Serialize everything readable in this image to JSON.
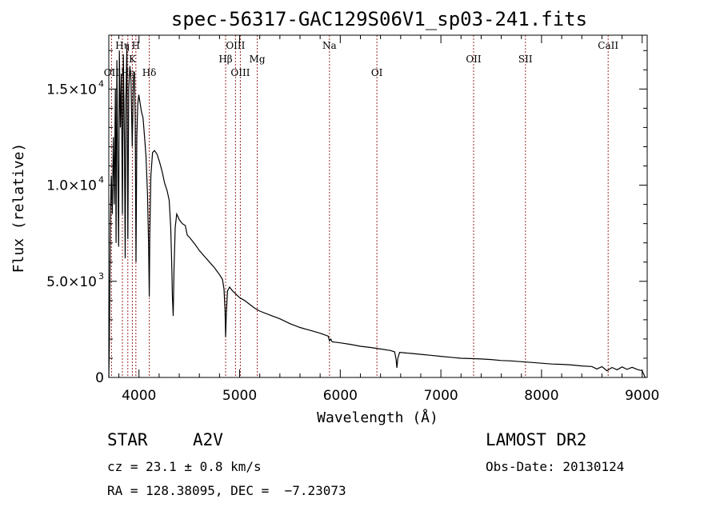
{
  "chart_data": {
    "type": "line",
    "title": "spec-56317-GAC129S06V1_sp03-241.fits",
    "xlabel": "Wavelength (Å)",
    "ylabel": "Flux (relative)",
    "xlim": [
      3700,
      9050
    ],
    "ylim": [
      0,
      17800
    ],
    "x_ticks": [
      {
        "value": 4000,
        "label": "4000"
      },
      {
        "value": 5000,
        "label": "5000"
      },
      {
        "value": 6000,
        "label": "6000"
      },
      {
        "value": 7000,
        "label": "7000"
      },
      {
        "value": 8000,
        "label": "8000"
      },
      {
        "value": 9000,
        "label": "9000"
      }
    ],
    "y_ticks": [
      {
        "value": 0,
        "label": "0"
      },
      {
        "value": 5000,
        "label": "5.0×10",
        "exp": "3"
      },
      {
        "value": 10000,
        "label": "1.0×10",
        "exp": "4"
      },
      {
        "value": 15000,
        "label": "1.5×10",
        "exp": "4"
      }
    ],
    "grid": false,
    "series": [
      {
        "values_xy": [
          [
            3700,
            0
          ],
          [
            3705,
            1500
          ],
          [
            3710,
            4500
          ],
          [
            3715,
            8000
          ],
          [
            3725,
            10500
          ],
          [
            3735,
            8500
          ],
          [
            3745,
            12500
          ],
          [
            3755,
            9000
          ],
          [
            3765,
            15000
          ],
          [
            3772,
            7000
          ],
          [
            3780,
            16500
          ],
          [
            3790,
            10500
          ],
          [
            3798,
            6800
          ],
          [
            3805,
            17000
          ],
          [
            3815,
            13000
          ],
          [
            3825,
            15800
          ],
          [
            3835,
            8500
          ],
          [
            3845,
            16800
          ],
          [
            3855,
            12500
          ],
          [
            3863,
            6200
          ],
          [
            3870,
            14500
          ],
          [
            3880,
            17300
          ],
          [
            3889,
            7200
          ],
          [
            3898,
            15000
          ],
          [
            3910,
            16200
          ],
          [
            3920,
            15500
          ],
          [
            3933,
            12000
          ],
          [
            3945,
            15600
          ],
          [
            3955,
            15900
          ],
          [
            3962,
            13500
          ],
          [
            3970,
            6000
          ],
          [
            3978,
            12500
          ],
          [
            3988,
            14200
          ],
          [
            3998,
            14700
          ],
          [
            4010,
            14300
          ],
          [
            4025,
            13800
          ],
          [
            4040,
            13500
          ],
          [
            4055,
            12500
          ],
          [
            4070,
            11500
          ],
          [
            4085,
            9500
          ],
          [
            4095,
            7000
          ],
          [
            4102,
            4200
          ],
          [
            4108,
            7500
          ],
          [
            4118,
            10500
          ],
          [
            4135,
            11700
          ],
          [
            4155,
            11800
          ],
          [
            4180,
            11600
          ],
          [
            4205,
            11200
          ],
          [
            4230,
            10700
          ],
          [
            4255,
            10100
          ],
          [
            4280,
            9700
          ],
          [
            4300,
            9200
          ],
          [
            4315,
            7800
          ],
          [
            4325,
            6000
          ],
          [
            4332,
            4200
          ],
          [
            4340,
            3200
          ],
          [
            4348,
            5600
          ],
          [
            4360,
            7800
          ],
          [
            4375,
            8500
          ],
          [
            4400,
            8200
          ],
          [
            4430,
            8000
          ],
          [
            4460,
            7900
          ],
          [
            4480,
            7400
          ],
          [
            4500,
            7300
          ],
          [
            4530,
            7100
          ],
          [
            4560,
            6900
          ],
          [
            4600,
            6600
          ],
          [
            4650,
            6300
          ],
          [
            4700,
            6000
          ],
          [
            4750,
            5700
          ],
          [
            4800,
            5350
          ],
          [
            4830,
            5100
          ],
          [
            4845,
            4600
          ],
          [
            4855,
            3500
          ],
          [
            4861,
            2100
          ],
          [
            4868,
            3300
          ],
          [
            4880,
            4500
          ],
          [
            4900,
            4700
          ],
          [
            4930,
            4500
          ],
          [
            5000,
            4150
          ],
          [
            5050,
            4000
          ],
          [
            5100,
            3800
          ],
          [
            5150,
            3600
          ],
          [
            5200,
            3450
          ],
          [
            5300,
            3250
          ],
          [
            5400,
            3050
          ],
          [
            5500,
            2800
          ],
          [
            5600,
            2600
          ],
          [
            5700,
            2450
          ],
          [
            5800,
            2300
          ],
          [
            5880,
            2150
          ],
          [
            5893,
            1900
          ],
          [
            5905,
            2000
          ],
          [
            5920,
            1850
          ],
          [
            6000,
            1800
          ],
          [
            6100,
            1720
          ],
          [
            6200,
            1620
          ],
          [
            6300,
            1560
          ],
          [
            6400,
            1480
          ],
          [
            6500,
            1400
          ],
          [
            6540,
            1330
          ],
          [
            6555,
            950
          ],
          [
            6563,
            500
          ],
          [
            6572,
            1000
          ],
          [
            6590,
            1300
          ],
          [
            6700,
            1250
          ],
          [
            6800,
            1200
          ],
          [
            6900,
            1150
          ],
          [
            7000,
            1100
          ],
          [
            7100,
            1050
          ],
          [
            7200,
            1000
          ],
          [
            7300,
            980
          ],
          [
            7400,
            960
          ],
          [
            7500,
            930
          ],
          [
            7600,
            880
          ],
          [
            7700,
            860
          ],
          [
            7800,
            820
          ],
          [
            7900,
            780
          ],
          [
            8000,
            740
          ],
          [
            8100,
            700
          ],
          [
            8200,
            680
          ],
          [
            8300,
            650
          ],
          [
            8400,
            600
          ],
          [
            8500,
            570
          ],
          [
            8550,
            440
          ],
          [
            8600,
            560
          ],
          [
            8650,
            350
          ],
          [
            8700,
            520
          ],
          [
            8750,
            400
          ],
          [
            8800,
            550
          ],
          [
            8850,
            420
          ],
          [
            8900,
            530
          ],
          [
            8950,
            420
          ],
          [
            9000,
            350
          ],
          [
            9030,
            0
          ]
        ]
      }
    ],
    "spectral_lines": [
      {
        "name": "OII",
        "x": 3727,
        "row": 4
      },
      {
        "name": "Hη",
        "x": 3835,
        "row": 1
      },
      {
        "name": "He",
        "x": 3889,
        "row": 4
      },
      {
        "name": "K",
        "x": 3934,
        "row": 2
      },
      {
        "name": "H",
        "x": 3969,
        "row": 1
      },
      {
        "name": "Hδ",
        "x": 4102,
        "row": 4
      },
      {
        "name": "Hβ",
        "x": 4861,
        "row": 2
      },
      {
        "name": "OIII",
        "x": 4959,
        "row": 1
      },
      {
        "name": "OIII",
        "x": 5007,
        "row": 3
      },
      {
        "name": "Mg",
        "x": 5175,
        "row": 2
      },
      {
        "name": "Na",
        "x": 5893,
        "row": 1
      },
      {
        "name": "OI",
        "x": 6364,
        "row": 4
      },
      {
        "name": "OII",
        "x": 7325,
        "row": 2
      },
      {
        "name": "SII",
        "x": 7840,
        "row": 2
      },
      {
        "name": "CaII",
        "x": 8662,
        "row": 1
      }
    ]
  },
  "info": {
    "class_label": "STAR",
    "subclass": "A2V",
    "cz": "cz = 23.1 ± 0.8 km/s",
    "radec": "RA = 128.38095, DEC =  −7.23073",
    "survey": "LAMOST DR2",
    "obs_date": "Obs-Date: 20130124"
  }
}
